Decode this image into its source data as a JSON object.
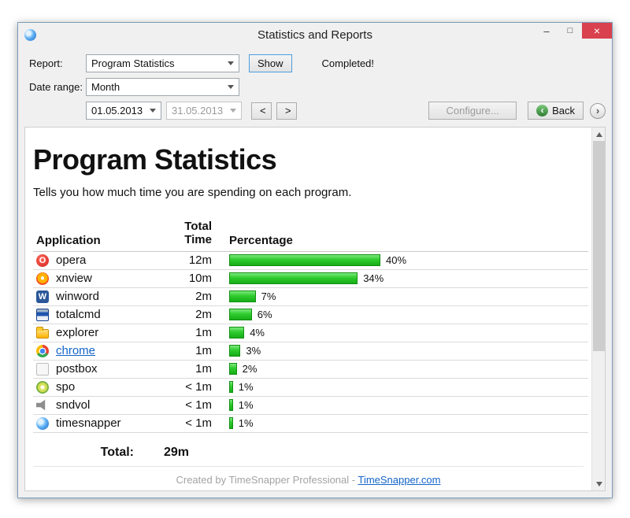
{
  "window": {
    "title": "Statistics and Reports",
    "controls": {
      "minimize": "–",
      "maximize": "□",
      "close": "×"
    }
  },
  "toolbar": {
    "report_label": "Report:",
    "report_value": "Program Statistics",
    "show_button": "Show",
    "status": "Completed!",
    "date_range_label": "Date range:",
    "date_range_value": "Month",
    "date_from": "01.05.2013",
    "date_to": "31.05.2013",
    "prev_button": "<",
    "next_button": ">",
    "configure_button": "Configure...",
    "back_button": "Back"
  },
  "report": {
    "title": "Program Statistics",
    "subtitle": "Tells you how much time you are spending on each program.",
    "header": {
      "application": "Application",
      "total_time": "Total\nTime",
      "percentage": "Percentage"
    },
    "rows": [
      {
        "app": "opera",
        "time": "12m",
        "pct": 40,
        "pct_label": "40%",
        "icon": "opera-icon"
      },
      {
        "app": "xnview",
        "time": "10m",
        "pct": 34,
        "pct_label": "34%",
        "icon": "xnview-icon"
      },
      {
        "app": "winword",
        "time": "2m",
        "pct": 7,
        "pct_label": "7%",
        "icon": "winword-icon"
      },
      {
        "app": "totalcmd",
        "time": "2m",
        "pct": 6,
        "pct_label": "6%",
        "icon": "totalcmd-icon"
      },
      {
        "app": "explorer",
        "time": "1m",
        "pct": 4,
        "pct_label": "4%",
        "icon": "explorer-icon"
      },
      {
        "app": "chrome",
        "time": "1m",
        "pct": 3,
        "pct_label": "3%",
        "icon": "chrome-icon"
      },
      {
        "app": "postbox",
        "time": "1m",
        "pct": 2,
        "pct_label": "2%",
        "icon": "postbox-icon"
      },
      {
        "app": "spo",
        "time": "< 1m",
        "pct": 1,
        "pct_label": "1%",
        "icon": "spo-icon"
      },
      {
        "app": "sndvol",
        "time": "< 1m",
        "pct": 1,
        "pct_label": "1%",
        "icon": "sndvol-icon"
      },
      {
        "app": "timesnapper",
        "time": "< 1m",
        "pct": 1,
        "pct_label": "1%",
        "icon": "timesnapper-icon"
      }
    ],
    "total_label": "Total:",
    "total_value": "29m",
    "footer_prefix": "Created by TimeSnapper Professional - ",
    "footer_link": "TimeSnapper.com",
    "bar_color": "#2ecc2e"
  }
}
